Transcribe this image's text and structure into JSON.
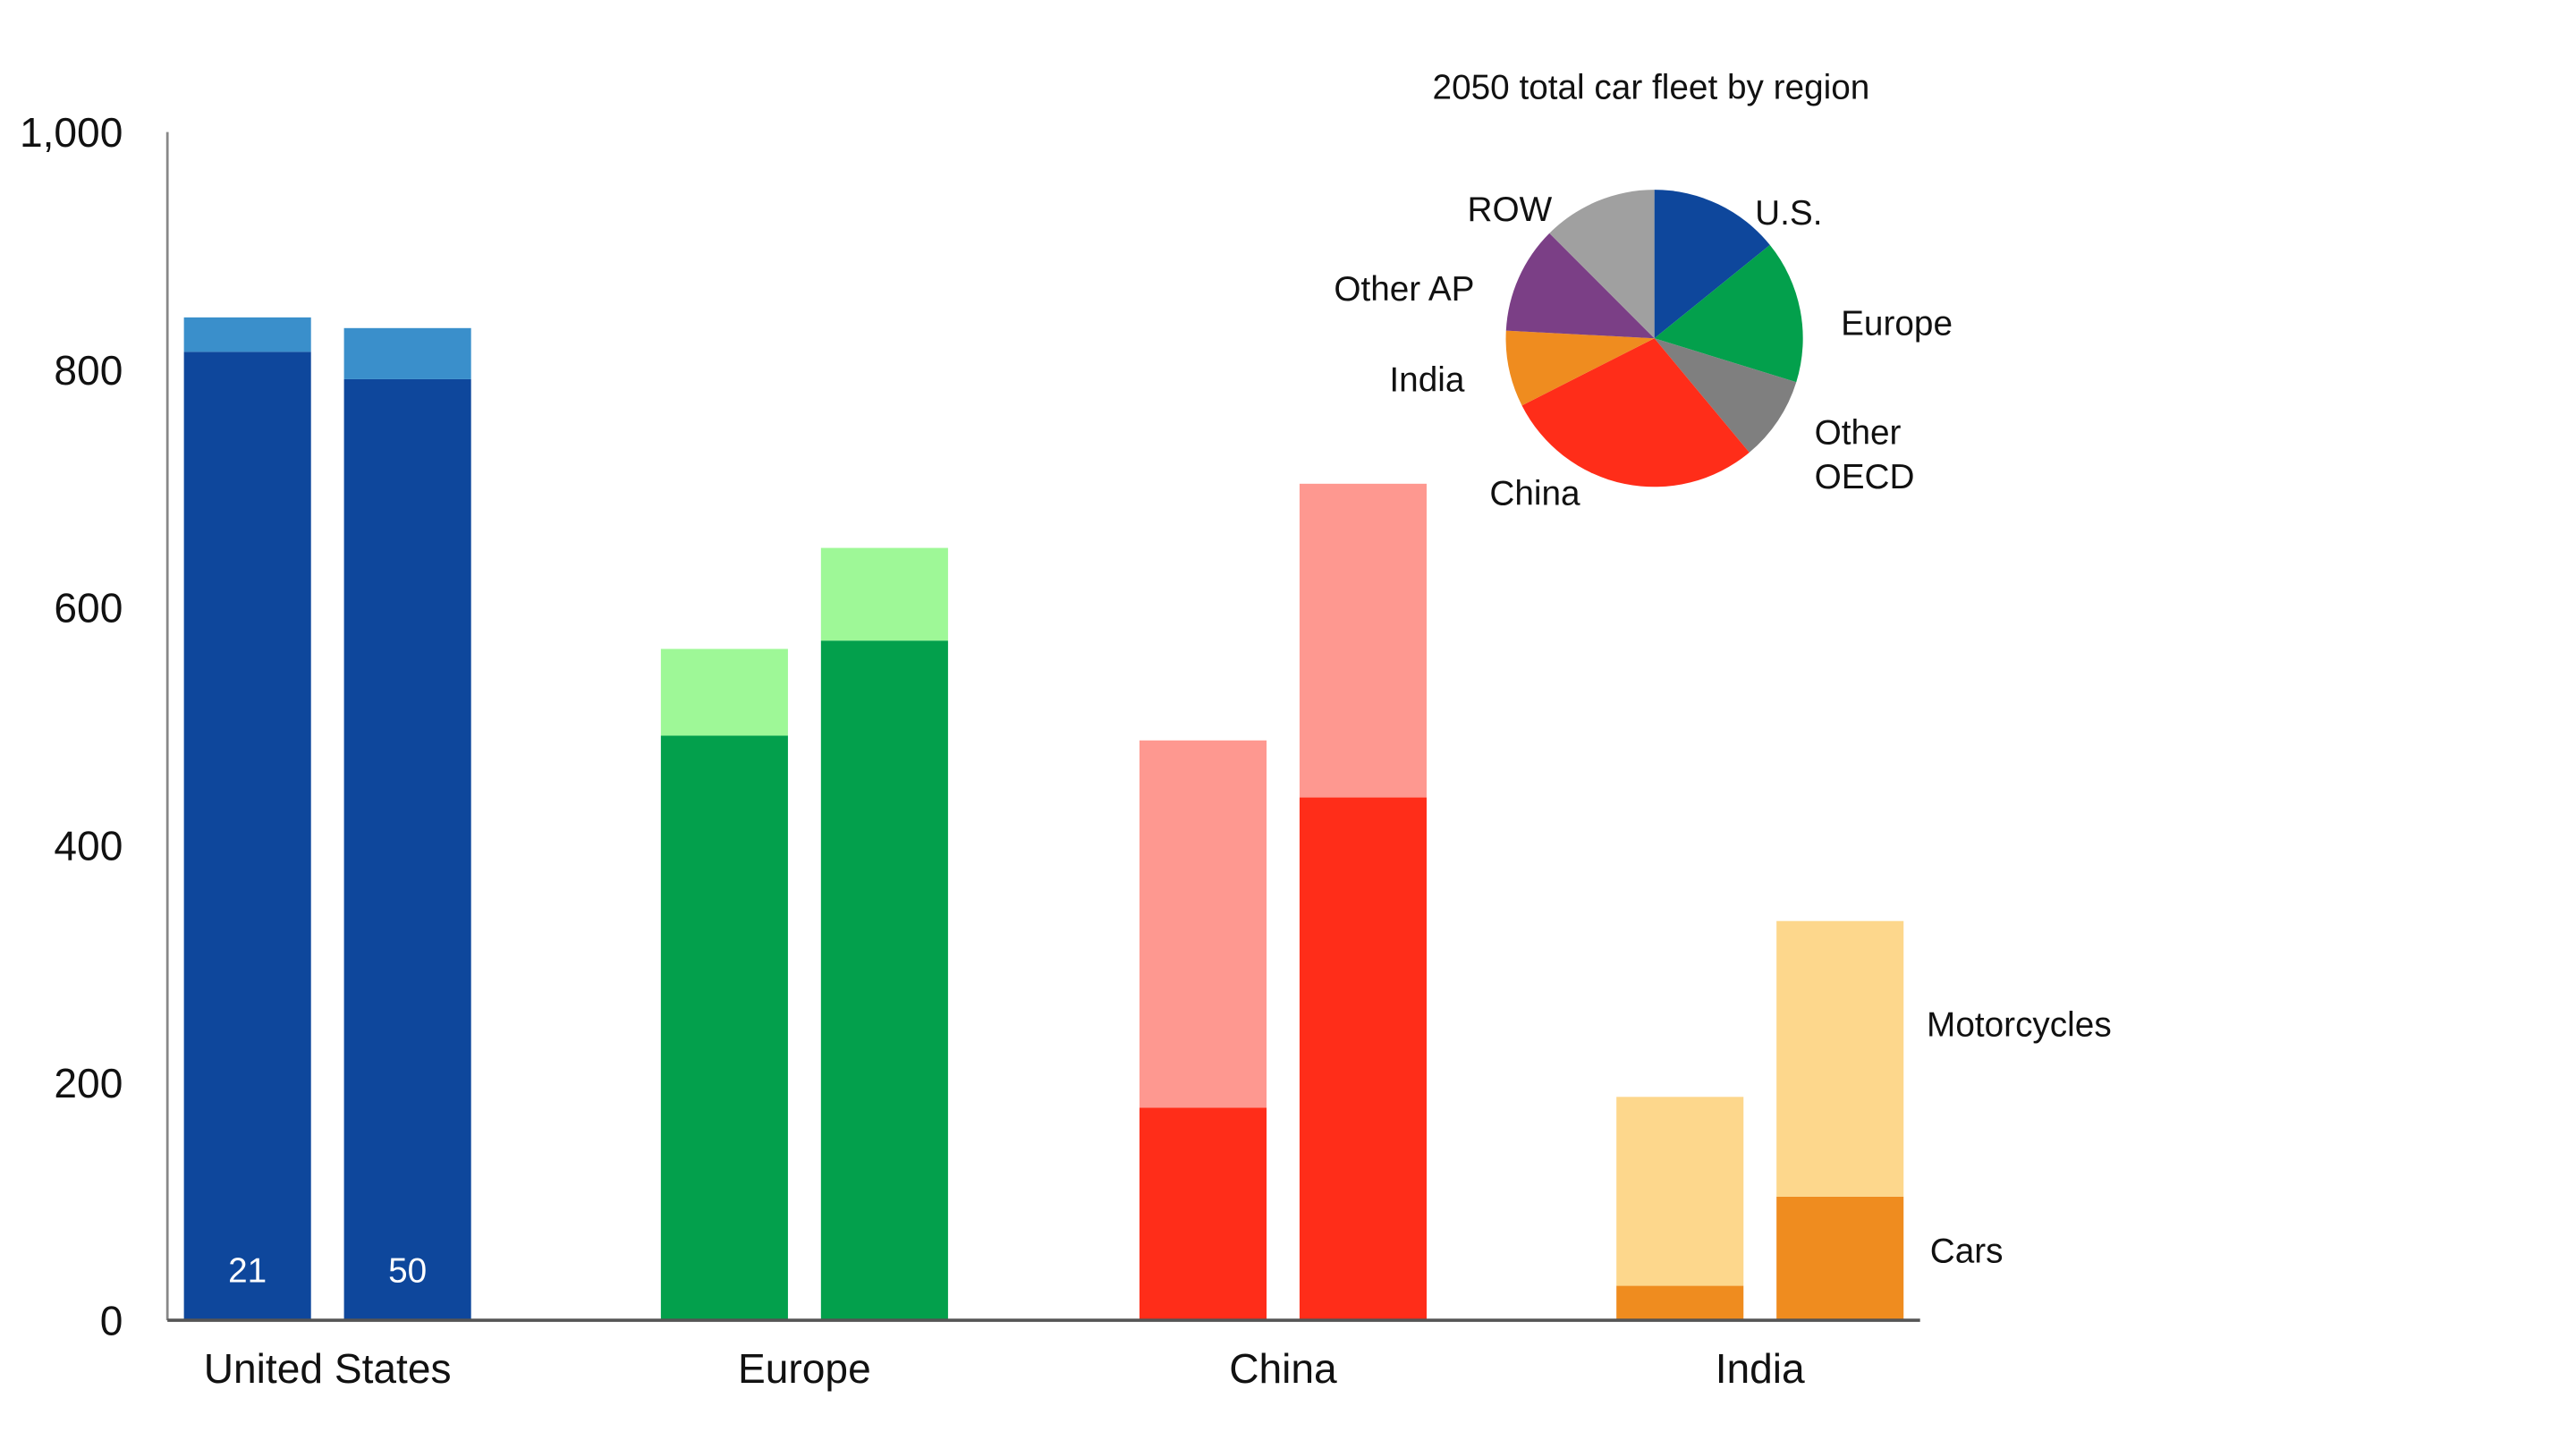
{
  "chart_data": {
    "type": "bar",
    "stacked": true,
    "ylim": [
      0,
      1000
    ],
    "yticks": [
      "0",
      "200",
      "400",
      "600",
      "800",
      "1,000"
    ],
    "ytick_values": [
      0,
      200,
      400,
      600,
      800,
      1000
    ],
    "categories": [
      "United States",
      "Europe",
      "China",
      "India"
    ],
    "bar_labels": [
      "21",
      "50"
    ],
    "series_labels": {
      "cars": "Cars",
      "motorcycles": "Motorcycles"
    },
    "groups": [
      {
        "name": "United States",
        "dark": "#0e479c",
        "light": "#3a8fcb",
        "bars": [
          {
            "cars": 815,
            "motorcycles": 29
          },
          {
            "cars": 792,
            "motorcycles": 43
          }
        ]
      },
      {
        "name": "Europe",
        "dark": "#03a04c",
        "light": "#9ef897",
        "bars": [
          {
            "cars": 492,
            "motorcycles": 73
          },
          {
            "cars": 572,
            "motorcycles": 78
          }
        ]
      },
      {
        "name": "China",
        "dark": "#ff2d19",
        "light": "#fe9890",
        "bars": [
          {
            "cars": 179,
            "motorcycles": 309
          },
          {
            "cars": 440,
            "motorcycles": 264
          }
        ]
      },
      {
        "name": "India",
        "dark": "#ef8c1f",
        "light": "#fdd78c",
        "bars": [
          {
            "cars": 29,
            "motorcycles": 159
          },
          {
            "cars": 104,
            "motorcycles": 232
          }
        ]
      }
    ],
    "inset_pie": {
      "type": "pie",
      "title": "2050 total car fleet by region",
      "slices": [
        {
          "label": "U.S.",
          "value": 14.2,
          "color": "#0e479c"
        },
        {
          "label": "Europe",
          "value": 15.6,
          "color": "#03a04c"
        },
        {
          "label": "Other OECD",
          "value": 9.2,
          "color": "#7f7f7f"
        },
        {
          "label": "China",
          "value": 28.6,
          "color": "#ff2d19"
        },
        {
          "label": "India",
          "value": 8.3,
          "color": "#ef8c1f"
        },
        {
          "label": "Other AP",
          "value": 11.7,
          "color": "#7b3f86"
        },
        {
          "label": "ROW",
          "value": 12.5,
          "color": "#a0a0a0"
        }
      ]
    }
  }
}
